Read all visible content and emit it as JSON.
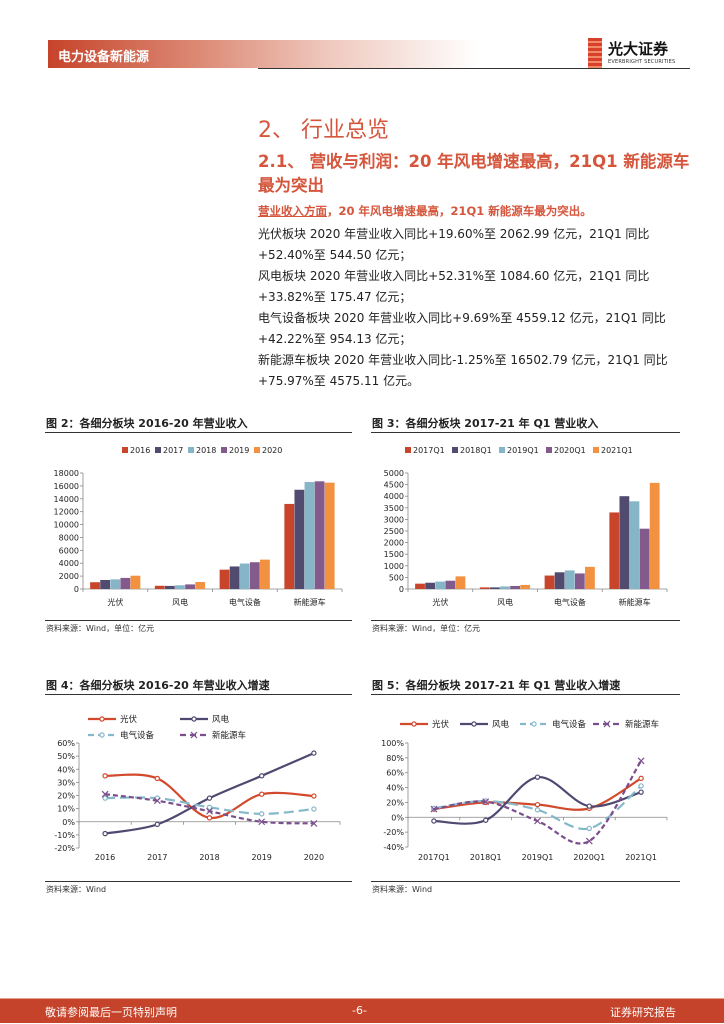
{
  "header": {
    "section": "电力设备新能源",
    "logo_cn": "光大证券",
    "logo_en": "EVERBRIGHT SECURITIES"
  },
  "heading1": "2、 行业总览",
  "heading2": "2.1、  营收与利润：20 年风电增速最高，21Q1 新能源车最为突出",
  "lead": {
    "underlined": "营业收入方面",
    "rest": "，20 年风电增速最高，21Q1 新能源车最为突出。"
  },
  "paragraphs": [
    "光伏板块 2020 年营业收入同比+19.60%至 2062.99 亿元，21Q1 同比+52.40%至 544.50 亿元；",
    "风电板块 2020 年营业收入同比+52.31%至 1084.60 亿元，21Q1 同比+33.82%至 175.47 亿元；",
    "电气设备板块 2020 年营业收入同比+9.69%至 4559.12 亿元，21Q1 同比+42.22%至 954.13 亿元；",
    "新能源车板块 2020 年营业收入同比-1.25%至 16502.79 亿元，21Q1 同比+75.97%至 4575.11 亿元。"
  ],
  "chart_data": [
    {
      "id": "fig2",
      "type": "bar",
      "title": "图 2：各细分板块 2016-20 年营业收入",
      "source": "资料来源：Wind，单位：亿元",
      "categories": [
        "光伏",
        "风电",
        "电气设备",
        "新能源车"
      ],
      "ylim": [
        0,
        18000
      ],
      "yticks": [
        "0",
        "2000",
        "4000",
        "6000",
        "8000",
        "10000",
        "12000",
        "14000",
        "16000",
        "18000"
      ],
      "legend_position": "top",
      "series": [
        {
          "name": "2016",
          "color": "#c8442a",
          "values": [
            1050,
            500,
            3000,
            13200
          ]
        },
        {
          "name": "2017",
          "color": "#514b70",
          "values": [
            1400,
            480,
            3500,
            15400
          ]
        },
        {
          "name": "2018",
          "color": "#87b5c8",
          "values": [
            1500,
            580,
            3950,
            16600
          ]
        },
        {
          "name": "2019",
          "color": "#835a8c",
          "values": [
            1720,
            712,
            4156,
            16710
          ]
        },
        {
          "name": "2020",
          "color": "#f29240",
          "values": [
            2063,
            1085,
            4559,
            16503
          ]
        }
      ]
    },
    {
      "id": "fig3",
      "type": "bar",
      "title": "图 3：各细分板块 2017-21 年 Q1 营业收入",
      "source": "资料来源：Wind，单位：亿元",
      "categories": [
        "光伏",
        "风电",
        "电气设备",
        "新能源车"
      ],
      "ylim": [
        0,
        5000
      ],
      "yticks": [
        "0",
        "500",
        "1000",
        "1500",
        "2000",
        "2500",
        "3000",
        "3500",
        "4000",
        "4500",
        "5000"
      ],
      "legend_position": "top",
      "series": [
        {
          "name": "2017Q1",
          "color": "#c8442a",
          "values": [
            230,
            70,
            580,
            3300
          ]
        },
        {
          "name": "2018Q1",
          "color": "#514b70",
          "values": [
            270,
            70,
            720,
            4000
          ]
        },
        {
          "name": "2019Q1",
          "color": "#87b5c8",
          "values": [
            320,
            110,
            800,
            3780
          ]
        },
        {
          "name": "2020Q1",
          "color": "#835a8c",
          "values": [
            357,
            131,
            671,
            2600
          ]
        },
        {
          "name": "2021Q1",
          "color": "#f29240",
          "values": [
            545,
            175,
            954,
            4575
          ]
        }
      ]
    },
    {
      "id": "fig4",
      "type": "line",
      "title": "图 4：各细分板块 2016-20 年营业收入增速",
      "source": "资料来源：Wind",
      "categories": [
        "2016",
        "2017",
        "2018",
        "2019",
        "2020"
      ],
      "ylim": [
        -20,
        60
      ],
      "yticks": [
        "-20%",
        "-10%",
        "0%",
        "10%",
        "20%",
        "30%",
        "40%",
        "50%",
        "60%"
      ],
      "legend_position": "top",
      "series": [
        {
          "name": "光伏",
          "color": "#d2492c",
          "style": "solid",
          "marker": "circle",
          "values": [
            35,
            33,
            3,
            21,
            19.6
          ]
        },
        {
          "name": "风电",
          "color": "#4e4970",
          "style": "solid",
          "marker": "circle",
          "values": [
            -9,
            -2,
            18,
            35,
            52.3
          ]
        },
        {
          "name": "电气设备",
          "color": "#86b8cb",
          "style": "dashed",
          "marker": "circle",
          "values": [
            18,
            18,
            11,
            6,
            9.7
          ]
        },
        {
          "name": "新能源车",
          "color": "#7b4f8e",
          "style": "dashed",
          "marker": "x",
          "values": [
            21,
            16,
            8,
            0,
            -1.25
          ]
        }
      ]
    },
    {
      "id": "fig5",
      "type": "line",
      "title": "图 5：各细分板块 2017-21 年 Q1 营业收入增速",
      "source": "资料来源：Wind",
      "categories": [
        "2017Q1",
        "2018Q1",
        "2019Q1",
        "2020Q1",
        "2021Q1"
      ],
      "ylim": [
        -40,
        100
      ],
      "yticks": [
        "-40%",
        "-20%",
        "0%",
        "20%",
        "40%",
        "60%",
        "80%",
        "100%"
      ],
      "legend_position": "top",
      "series": [
        {
          "name": "光伏",
          "color": "#d2492c",
          "style": "solid",
          "marker": "circle",
          "values": [
            11,
            20,
            17,
            12,
            52.4
          ]
        },
        {
          "name": "风电",
          "color": "#4e4970",
          "style": "solid",
          "marker": "circle",
          "values": [
            -5,
            -4,
            54,
            15,
            33.8
          ]
        },
        {
          "name": "电气设备",
          "color": "#86b8cb",
          "style": "dashed",
          "marker": "circle",
          "values": [
            12,
            22,
            10,
            -15,
            42.2
          ]
        },
        {
          "name": "新能源车",
          "color": "#7b4f8e",
          "style": "dashed",
          "marker": "x",
          "values": [
            11,
            21,
            -5,
            -32,
            76
          ]
        }
      ]
    }
  ],
  "footer": {
    "left": "敬请参阅最后一页特别声明",
    "center": "-6-",
    "right": "证券研究报告"
  }
}
